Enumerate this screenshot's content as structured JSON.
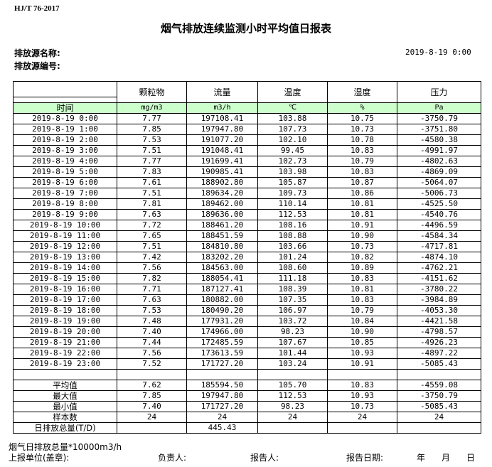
{
  "standard": "HJ/T  76-2017",
  "title": "烟气排放连续监测小时平均值日报表",
  "source_name_label": "排放源名称:",
  "source_id_label": "排放源编号:",
  "report_datetime": "2019-8-19 0:00",
  "columns": [
    "颗粒物",
    "流量",
    "温度",
    "湿度",
    "压力"
  ],
  "time_header": "时间",
  "units": [
    "mg/m3",
    "m3/h",
    "℃",
    "%",
    "Pa"
  ],
  "rows": [
    [
      "2019-8-19 0:00",
      "7.77",
      "197108.41",
      "103.88",
      "10.75",
      "-3750.79"
    ],
    [
      "2019-8-19 1:00",
      "7.85",
      "197947.80",
      "107.73",
      "10.73",
      "-3751.80"
    ],
    [
      "2019-8-19 2:00",
      "7.53",
      "191077.20",
      "102.10",
      "10.78",
      "-4580.38"
    ],
    [
      "2019-8-19 3:00",
      "7.51",
      "191048.41",
      "99.45",
      "10.83",
      "-4991.97"
    ],
    [
      "2019-8-19 4:00",
      "7.77",
      "191699.41",
      "102.73",
      "10.79",
      "-4802.63"
    ],
    [
      "2019-8-19 5:00",
      "7.83",
      "190985.41",
      "103.98",
      "10.83",
      "-4869.09"
    ],
    [
      "2019-8-19 6:00",
      "7.61",
      "188902.80",
      "105.87",
      "10.87",
      "-5064.07"
    ],
    [
      "2019-8-19 7:00",
      "7.51",
      "189634.20",
      "109.73",
      "10.86",
      "-5006.73"
    ],
    [
      "2019-8-19 8:00",
      "7.81",
      "189462.00",
      "110.14",
      "10.81",
      "-4525.50"
    ],
    [
      "2019-8-19 9:00",
      "7.63",
      "189636.00",
      "112.53",
      "10.81",
      "-4540.76"
    ],
    [
      "2019-8-19 10:00",
      "7.72",
      "188461.20",
      "108.16",
      "10.91",
      "-4496.59"
    ],
    [
      "2019-8-19 11:00",
      "7.65",
      "188451.59",
      "108.88",
      "10.90",
      "-4584.34"
    ],
    [
      "2019-8-19 12:00",
      "7.51",
      "184810.80",
      "103.66",
      "10.73",
      "-4717.81"
    ],
    [
      "2019-8-19 13:00",
      "7.42",
      "183202.20",
      "101.24",
      "10.82",
      "-4874.10"
    ],
    [
      "2019-8-19 14:00",
      "7.56",
      "184563.00",
      "108.60",
      "10.89",
      "-4762.21"
    ],
    [
      "2019-8-19 15:00",
      "7.82",
      "188054.41",
      "111.18",
      "10.83",
      "-4151.62"
    ],
    [
      "2019-8-19 16:00",
      "7.71",
      "187127.41",
      "108.39",
      "10.81",
      "-3780.22"
    ],
    [
      "2019-8-19 17:00",
      "7.63",
      "180882.00",
      "107.35",
      "10.83",
      "-3984.89"
    ],
    [
      "2019-8-19 18:00",
      "7.53",
      "180490.20",
      "106.97",
      "10.79",
      "-4053.30"
    ],
    [
      "2019-8-19 19:00",
      "7.48",
      "177931.20",
      "103.72",
      "10.84",
      "-4421.58"
    ],
    [
      "2019-8-19 20:00",
      "7.40",
      "174966.00",
      "98.23",
      "10.90",
      "-4798.57"
    ],
    [
      "2019-8-19 21:00",
      "7.44",
      "172485.59",
      "107.67",
      "10.85",
      "-4926.23"
    ],
    [
      "2019-8-19 22:00",
      "7.56",
      "173613.59",
      "101.44",
      "10.93",
      "-4897.22"
    ],
    [
      "2019-8-19 23:00",
      "7.52",
      "171727.20",
      "103.24",
      "10.91",
      "-5085.43"
    ]
  ],
  "summary": [
    [
      "平均值",
      "7.62",
      "185594.50",
      "105.70",
      "10.83",
      "-4559.08"
    ],
    [
      "最大值",
      "7.85",
      "197947.80",
      "112.53",
      "10.93",
      "-3750.79"
    ],
    [
      "最小值",
      "7.40",
      "171727.20",
      "98.23",
      "10.73",
      "-5085.43"
    ],
    [
      "样本数",
      "24",
      "24",
      "24",
      "24",
      "24"
    ],
    [
      "日排放总量(T/D)",
      "",
      "445.43",
      "",
      "",
      ""
    ]
  ],
  "footer": {
    "note": "烟气日排放总量*10000m3/h",
    "unit_label": "上报单位(盖章):",
    "person_label": "负责人:",
    "reporter_label": "报告人:",
    "date_label": "报告日期:",
    "year": "年",
    "month": "月",
    "day": "日"
  }
}
